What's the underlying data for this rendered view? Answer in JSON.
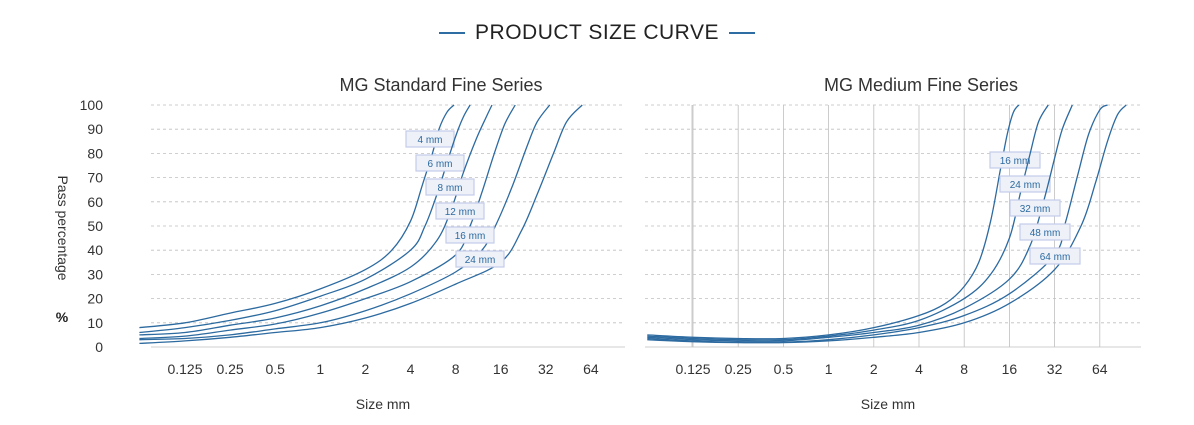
{
  "page_title": "PRODUCT SIZE CURVE",
  "colors": {
    "line": "#2c6aa0",
    "label_bg": "#eef1f8",
    "label_border": "#c3ccea",
    "grid": "#bfbfbf",
    "text": "#333333"
  },
  "chart_data": [
    {
      "type": "line",
      "title": "MG Standard Fine Series",
      "xlabel": "Size mm",
      "ylabel": "Pass percentage",
      "ylabel_unit": "%",
      "x_scale": "log2",
      "x_ticks": [
        "0.125",
        "0.25",
        "0.5",
        "1",
        "2",
        "4",
        "8",
        "16",
        "32",
        "64"
      ],
      "y_ticks": [
        "0",
        "10",
        "20",
        "30",
        "40",
        "50",
        "60",
        "70",
        "80",
        "90",
        "100"
      ],
      "ylim": [
        0,
        100
      ],
      "grid": {
        "horizontal": "dashed",
        "vertical": "none"
      },
      "series": [
        {
          "name": "4 mm",
          "points": [
            [
              0.062,
              8
            ],
            [
              0.125,
              10
            ],
            [
              0.25,
              14
            ],
            [
              0.5,
              18
            ],
            [
              1,
              24
            ],
            [
              2,
              32
            ],
            [
              3,
              40
            ],
            [
              4,
              52
            ],
            [
              4.8,
              67
            ],
            [
              5.6,
              80
            ],
            [
              6.2,
              90
            ],
            [
              7,
              97
            ],
            [
              7.8,
              100
            ]
          ]
        },
        {
          "name": "6 mm",
          "points": [
            [
              0.062,
              6
            ],
            [
              0.125,
              8
            ],
            [
              0.25,
              11
            ],
            [
              0.5,
              15
            ],
            [
              1,
              21
            ],
            [
              2,
              28
            ],
            [
              4,
              40
            ],
            [
              5,
              50
            ],
            [
              6,
              63
            ],
            [
              7,
              76
            ],
            [
              8,
              87
            ],
            [
              9,
              95
            ],
            [
              10,
              100
            ]
          ]
        },
        {
          "name": "8 mm",
          "points": [
            [
              0.062,
              5
            ],
            [
              0.125,
              6
            ],
            [
              0.25,
              9
            ],
            [
              0.5,
              12
            ],
            [
              1,
              17
            ],
            [
              2,
              24
            ],
            [
              4,
              33
            ],
            [
              6,
              44
            ],
            [
              7.5,
              57
            ],
            [
              9,
              72
            ],
            [
              11,
              86
            ],
            [
              12.8,
              95
            ],
            [
              14,
              100
            ]
          ]
        },
        {
          "name": "12 mm",
          "points": [
            [
              0.062,
              3.5
            ],
            [
              0.125,
              4.5
            ],
            [
              0.25,
              7
            ],
            [
              0.5,
              9.5
            ],
            [
              1,
              14
            ],
            [
              2,
              20
            ],
            [
              4,
              27
            ],
            [
              8,
              38
            ],
            [
              10,
              50
            ],
            [
              12,
              64
            ],
            [
              14.5,
              80
            ],
            [
              17,
              92
            ],
            [
              20,
              100
            ]
          ]
        },
        {
          "name": "16 mm",
          "points": [
            [
              0.062,
              3
            ],
            [
              0.125,
              3.5
            ],
            [
              0.25,
              5
            ],
            [
              0.5,
              7.5
            ],
            [
              1,
              10
            ],
            [
              2,
              15
            ],
            [
              4,
              22
            ],
            [
              8,
              31
            ],
            [
              12,
              40
            ],
            [
              15,
              51
            ],
            [
              19,
              66
            ],
            [
              24,
              83
            ],
            [
              28,
              93
            ],
            [
              34,
              100
            ]
          ]
        },
        {
          "name": "24 mm",
          "points": [
            [
              0.062,
              1.5
            ],
            [
              0.125,
              2.5
            ],
            [
              0.25,
              4
            ],
            [
              0.5,
              6
            ],
            [
              1,
              8
            ],
            [
              2,
              12
            ],
            [
              4,
              18
            ],
            [
              8,
              26
            ],
            [
              16,
              35
            ],
            [
              22,
              48
            ],
            [
              28,
              63
            ],
            [
              36,
              80
            ],
            [
              44,
              93
            ],
            [
              56,
              100
            ]
          ]
        }
      ]
    },
    {
      "type": "line",
      "title": "MG Medium Fine Series",
      "xlabel": "Size mm",
      "x_scale": "log2",
      "x_ticks": [
        "0.125",
        "0.25",
        "0.5",
        "1",
        "2",
        "4",
        "8",
        "16",
        "32",
        "64"
      ],
      "y_ticks": [
        "0",
        "10",
        "20",
        "30",
        "40",
        "50",
        "60",
        "70",
        "80",
        "90",
        "100"
      ],
      "ylim": [
        0,
        100
      ],
      "grid": {
        "horizontal": "dashed",
        "vertical": "solid"
      },
      "series": [
        {
          "name": "16 mm",
          "points": [
            [
              0.062,
              5
            ],
            [
              0.125,
              4
            ],
            [
              0.25,
              3.5
            ],
            [
              0.5,
              3.5
            ],
            [
              1,
              5
            ],
            [
              2,
              8
            ],
            [
              4,
              13
            ],
            [
              6,
              18
            ],
            [
              8,
              25
            ],
            [
              10,
              35
            ],
            [
              12,
              52
            ],
            [
              14,
              74
            ],
            [
              15.5,
              88
            ],
            [
              17,
              97
            ],
            [
              18.5,
              100
            ]
          ]
        },
        {
          "name": "24 mm",
          "points": [
            [
              0.062,
              4.5
            ],
            [
              0.125,
              3.5
            ],
            [
              0.25,
              3
            ],
            [
              0.5,
              3
            ],
            [
              1,
              4.5
            ],
            [
              2,
              7
            ],
            [
              4,
              11
            ],
            [
              8,
              20
            ],
            [
              12,
              30
            ],
            [
              16,
              45
            ],
            [
              19,
              64
            ],
            [
              22,
              80
            ],
            [
              25,
              93
            ],
            [
              29,
              100
            ]
          ]
        },
        {
          "name": "32 mm",
          "points": [
            [
              0.062,
              4
            ],
            [
              0.125,
              3
            ],
            [
              0.25,
              2.5
            ],
            [
              0.5,
              2.5
            ],
            [
              1,
              4
            ],
            [
              2,
              6
            ],
            [
              4,
              9
            ],
            [
              8,
              16
            ],
            [
              16,
              28
            ],
            [
              22,
              42
            ],
            [
              27,
              60
            ],
            [
              32,
              78
            ],
            [
              36,
              90
            ],
            [
              42,
              100
            ]
          ]
        },
        {
          "name": "48 mm",
          "points": [
            [
              0.062,
              3.5
            ],
            [
              0.125,
              2.5
            ],
            [
              0.25,
              2
            ],
            [
              0.5,
              2
            ],
            [
              1,
              3
            ],
            [
              2,
              5
            ],
            [
              4,
              8
            ],
            [
              8,
              13
            ],
            [
              16,
              22
            ],
            [
              32,
              38
            ],
            [
              38,
              52
            ],
            [
              46,
              72
            ],
            [
              54,
              88
            ],
            [
              64,
              98
            ],
            [
              72,
              100
            ]
          ]
        },
        {
          "name": "64 mm",
          "points": [
            [
              0.062,
              3
            ],
            [
              0.125,
              2.2
            ],
            [
              0.25,
              1.8
            ],
            [
              0.5,
              1.8
            ],
            [
              1,
              2.5
            ],
            [
              2,
              4
            ],
            [
              4,
              6
            ],
            [
              8,
              10
            ],
            [
              16,
              18
            ],
            [
              32,
              32
            ],
            [
              48,
              50
            ],
            [
              60,
              68
            ],
            [
              72,
              85
            ],
            [
              84,
              96
            ],
            [
              96,
              100
            ]
          ]
        }
      ]
    }
  ]
}
